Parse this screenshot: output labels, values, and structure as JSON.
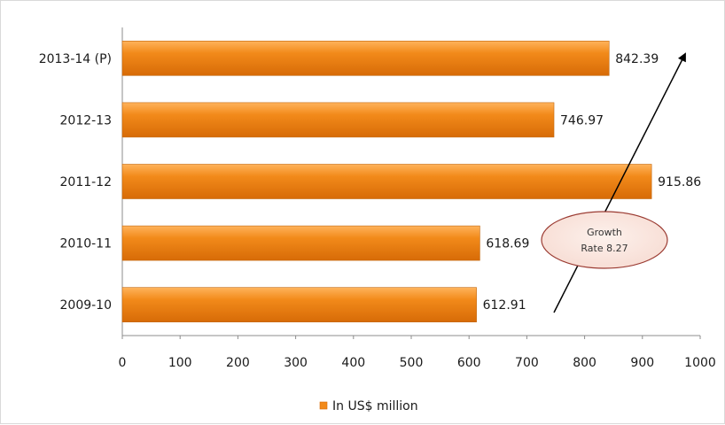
{
  "chart_data": {
    "type": "bar",
    "orientation": "horizontal",
    "categories": [
      "2009-10",
      "2010-11",
      "2011-12",
      "2012-13",
      "2013-14 (P)"
    ],
    "series": [
      {
        "name": "In US$ million",
        "values": [
          612.91,
          618.69,
          915.86,
          746.97,
          842.39
        ]
      }
    ],
    "data_labels": [
      "612.91",
      "618.69",
      "915.86",
      "746.97",
      "842.39"
    ],
    "xlim": [
      0,
      1000
    ],
    "x_ticks": [
      0,
      100,
      200,
      300,
      400,
      500,
      600,
      700,
      800,
      900,
      1000
    ],
    "grid": false,
    "legend": {
      "position": "bottom"
    },
    "annotation": {
      "line1": "Growth",
      "line2": "Rate 8.27",
      "arrow": "upward trend"
    },
    "colors": {
      "bar": "#f28a1a",
      "bar_dark": "#d76b07",
      "bar_light": "#ffb35c",
      "ellipse_fill": "#f7dcd3",
      "ellipse_stroke": "#9b3b32"
    }
  }
}
